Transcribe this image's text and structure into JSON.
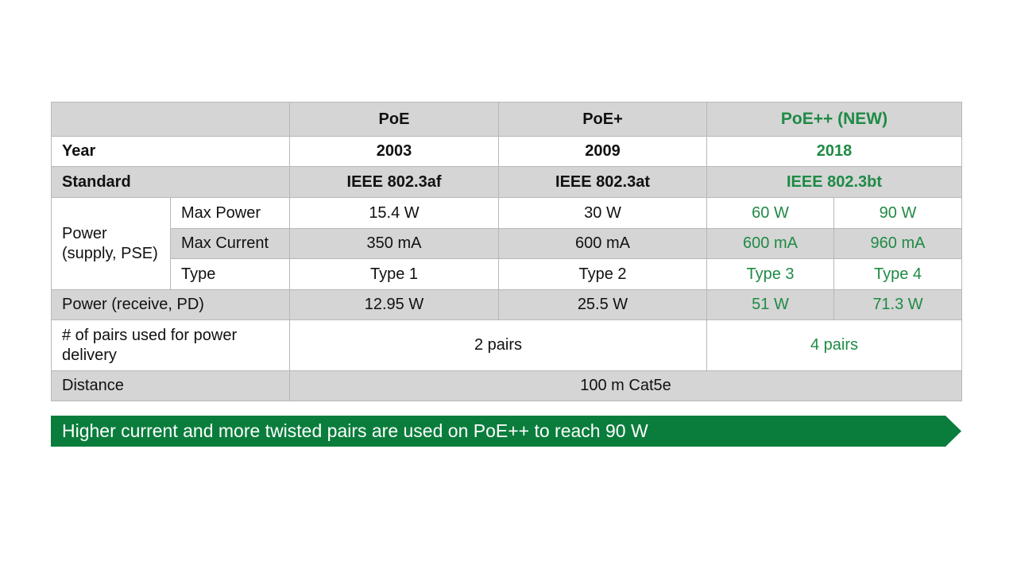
{
  "table": {
    "header": {
      "poe": "PoE",
      "poeplus": "PoE+",
      "poeplusplus": "PoE++ (NEW)"
    },
    "year": {
      "label": "Year",
      "poe": "2003",
      "poeplus": "2009",
      "poeplusplus": "2018"
    },
    "standard": {
      "label": "Standard",
      "poe": "IEEE 802.3af",
      "poeplus": "IEEE 802.3at",
      "poeplusplus": "IEEE 802.3bt"
    },
    "power_supply": {
      "label": "Power\n(supply, PSE)",
      "max_power": {
        "label": "Max Power",
        "values": [
          "15.4 W",
          "30 W",
          "60 W",
          "90 W"
        ]
      },
      "max_current": {
        "label": "Max Current",
        "values": [
          "350 mA",
          "600 mA",
          "600 mA",
          "960 mA"
        ]
      },
      "type": {
        "label": "Type",
        "values": [
          "Type 1",
          "Type 2",
          "Type 3",
          "Type 4"
        ]
      }
    },
    "power_receive": {
      "label": "Power (receive, PD)",
      "values": [
        "12.95 W",
        "25.5 W",
        "51 W",
        "71.3 W"
      ]
    },
    "pairs": {
      "label": "# of pairs used for power delivery",
      "poe_poeplus": "2 pairs",
      "poeplusplus": "4 pairs"
    },
    "distance": {
      "label": "Distance",
      "value": "100 m Cat5e"
    }
  },
  "banner": {
    "text": "Higher current and more twisted pairs are used on PoE++ to reach 90 W"
  },
  "colors": {
    "accent_green": "#0a7d3c",
    "header_gray": "#d5d5d5"
  }
}
